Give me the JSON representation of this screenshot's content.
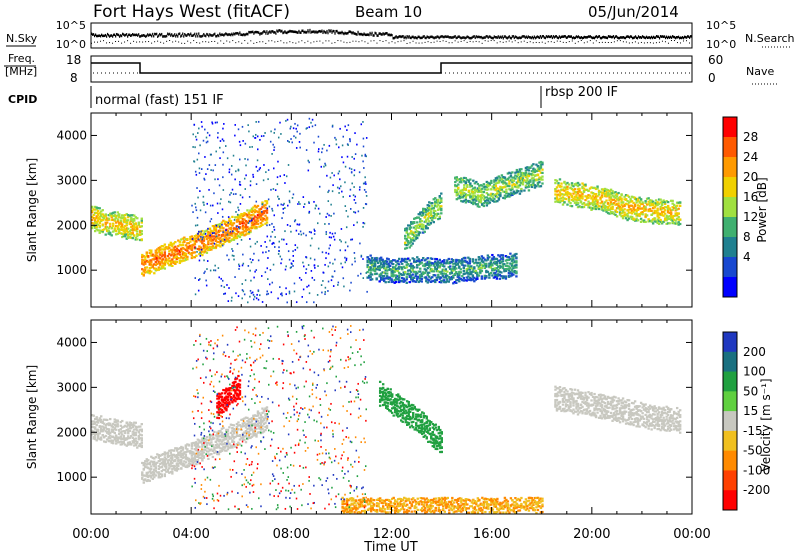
{
  "header": {
    "title": "Fort Hays West (fitACF)",
    "beam": "Beam 10",
    "date": "05/Jun/2014"
  },
  "top_panel": {
    "left_label": "N.Sky",
    "left_ticks": [
      "10^5",
      "10^0"
    ],
    "right_ticks": [
      "10^5",
      "10^0"
    ],
    "right_label": "N.Search"
  },
  "freq_panel": {
    "left_label_line1": "Freq.",
    "left_label_line2": "[MHz]",
    "left_ticks": [
      "18",
      "8"
    ],
    "right_ticks": [
      "60",
      "0"
    ],
    "right_label": "Nave"
  },
  "cpid_panel": {
    "label": "CPID",
    "segments": [
      {
        "text": "normal (fast) 151 IF",
        "start_hour": 0
      },
      {
        "text": "rbsp 200 IF",
        "start_hour": 18.1
      }
    ]
  },
  "x_axis": {
    "ticks": [
      "00:00",
      "04:00",
      "08:00",
      "12:00",
      "16:00",
      "20:00",
      "00:00"
    ],
    "label": "Time UT"
  },
  "power_colorbar": {
    "label": "Power [dB]",
    "ticks": [
      "28",
      "24",
      "20",
      "16",
      "12",
      "8",
      "4"
    ],
    "colors": [
      "#ff0000",
      "#ff5a00",
      "#ff9a00",
      "#f0d000",
      "#a0e040",
      "#40b070",
      "#208090",
      "#1848d0",
      "#0000ff"
    ]
  },
  "velocity_colorbar": {
    "label": "Velocity [m s⁻¹]",
    "ticks": [
      "200",
      "100",
      "50",
      "15",
      "-15",
      "-50",
      "-100",
      "-200"
    ],
    "colors": [
      "#2038c0",
      "#1a7080",
      "#20a040",
      "#60d040",
      "#c8c8c0",
      "#f0c020",
      "#ff8a00",
      "#ff4000",
      "#ff0000"
    ]
  },
  "chart_data": [
    {
      "type": "heatmap",
      "title": "Power",
      "ylabel": "Slant Range [km]",
      "xlabel": "Time UT",
      "xlim_hours": [
        0,
        24
      ],
      "ylim_km": [
        180,
        4500
      ],
      "y_ticks": [
        1000,
        2000,
        3000,
        4000
      ],
      "features": [
        {
          "name": "band A",
          "t": [
            0.0,
            0.5,
            1.0,
            1.5,
            2.0
          ],
          "range_km": [
            2200,
            2100,
            2050,
            2000,
            1950
          ],
          "power_db": 20
        },
        {
          "name": "band B",
          "t": [
            2.0,
            3.0,
            4.0,
            5.0,
            6.0,
            7.0
          ],
          "range_km": [
            1150,
            1350,
            1550,
            1800,
            2050,
            2350
          ],
          "power_db": 24
        },
        {
          "name": "band C",
          "t": [
            14.5,
            15.5,
            16.5,
            17.5,
            18.0
          ],
          "range_km": [
            2900,
            2700,
            2900,
            3100,
            3200
          ],
          "power_db": 16
        },
        {
          "name": "band D",
          "t": [
            18.5,
            19.5,
            20.5,
            21.5,
            22.5,
            23.5
          ],
          "range_km": [
            2800,
            2700,
            2600,
            2400,
            2350,
            2300
          ],
          "power_db": 20
        },
        {
          "name": "band E",
          "t": [
            11.0,
            12.0,
            13.0,
            14.0,
            15.0,
            16.0,
            17.0
          ],
          "range_km": [
            1100,
            1000,
            1050,
            1000,
            1050,
            1100,
            1150
          ],
          "power_db": 12
        },
        {
          "name": "band F",
          "t": [
            12.5,
            13.0,
            13.5,
            14.0
          ],
          "range_km": [
            1700,
            2000,
            2300,
            2500
          ],
          "power_db": 16
        }
      ]
    },
    {
      "type": "heatmap",
      "title": "Velocity",
      "ylabel": "Slant Range [km]",
      "xlabel": "Time UT",
      "xlim_hours": [
        0,
        24
      ],
      "ylim_km": [
        180,
        4500
      ],
      "y_ticks": [
        1000,
        2000,
        3000,
        4000
      ],
      "features": [
        {
          "name": "ground scatter A",
          "t": [
            0.0,
            1.0,
            2.0
          ],
          "range_km": [
            2150,
            2050,
            1950
          ],
          "velocity_ms": 0
        },
        {
          "name": "ground scatter B",
          "t": [
            2.0,
            4.0,
            6.0,
            7.0
          ],
          "range_km": [
            1150,
            1550,
            2050,
            2350
          ],
          "velocity_ms": 0
        },
        {
          "name": "red patch",
          "t": [
            5.0,
            5.3,
            5.6,
            5.9
          ],
          "range_km": [
            2600,
            2750,
            2900,
            3050
          ],
          "velocity_ms": -200
        },
        {
          "name": "green band",
          "t": [
            11.5,
            13.0,
            14.0
          ],
          "range_km": [
            2900,
            2300,
            1800
          ],
          "velocity_ms": 50
        },
        {
          "name": "ground scatter C",
          "t": [
            18.5,
            20.5,
            22.5,
            23.5
          ],
          "range_km": [
            2800,
            2600,
            2350,
            2300
          ],
          "velocity_ms": 0
        },
        {
          "name": "near-range band",
          "t": [
            10.0,
            12.0,
            14.0,
            16.0,
            18.0
          ],
          "range_km": [
            300,
            300,
            300,
            300,
            300
          ],
          "velocity_ms": -50
        }
      ]
    }
  ]
}
